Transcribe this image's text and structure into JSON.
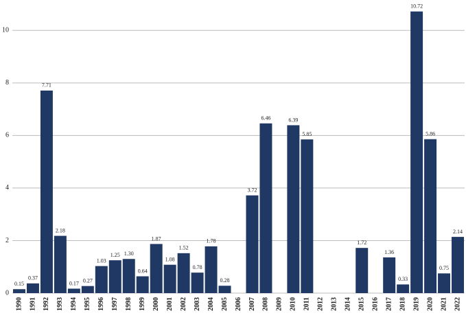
{
  "chart_data": {
    "type": "bar",
    "categories": [
      "1990",
      "1991",
      "1992",
      "1993",
      "1994",
      "1995",
      "1996",
      "1997",
      "1998",
      "1999",
      "2000",
      "2001",
      "2002",
      "2003",
      "2004",
      "2005",
      "2006",
      "2007",
      "2008",
      "2009",
      "2010",
      "2011",
      "2012",
      "2013",
      "2014",
      "2015",
      "2016",
      "2017",
      "2018",
      "2019",
      "2020",
      "2021",
      "2022"
    ],
    "values": [
      0.15,
      0.37,
      7.71,
      2.18,
      0.17,
      0.27,
      1.03,
      1.25,
      1.3,
      0.64,
      1.87,
      1.08,
      1.52,
      0.78,
      1.78,
      0.28,
      null,
      3.72,
      6.46,
      null,
      6.39,
      5.85,
      null,
      null,
      null,
      1.72,
      null,
      1.36,
      0.33,
      10.72,
      5.86,
      0.75,
      2.14
    ],
    "value_labels": [
      "0.15",
      "0.37",
      "7.71",
      "2.18",
      "0.17",
      "0.27",
      "1.03",
      "1.25",
      "1.30",
      "0.64",
      "1.87",
      "1.08",
      "1.52",
      "0.78",
      "1.78",
      "0.28",
      null,
      "3.72",
      "6.46",
      null,
      "6.39",
      "5.85",
      null,
      null,
      null,
      "1.72",
      null,
      "1.36",
      "0.33",
      "10.72",
      "5.86",
      "0.75",
      "2.14"
    ],
    "color": "#1f3864",
    "ylim": [
      0,
      11
    ],
    "yticks": [
      0,
      2,
      4,
      6,
      8,
      10
    ],
    "grid": true
  }
}
